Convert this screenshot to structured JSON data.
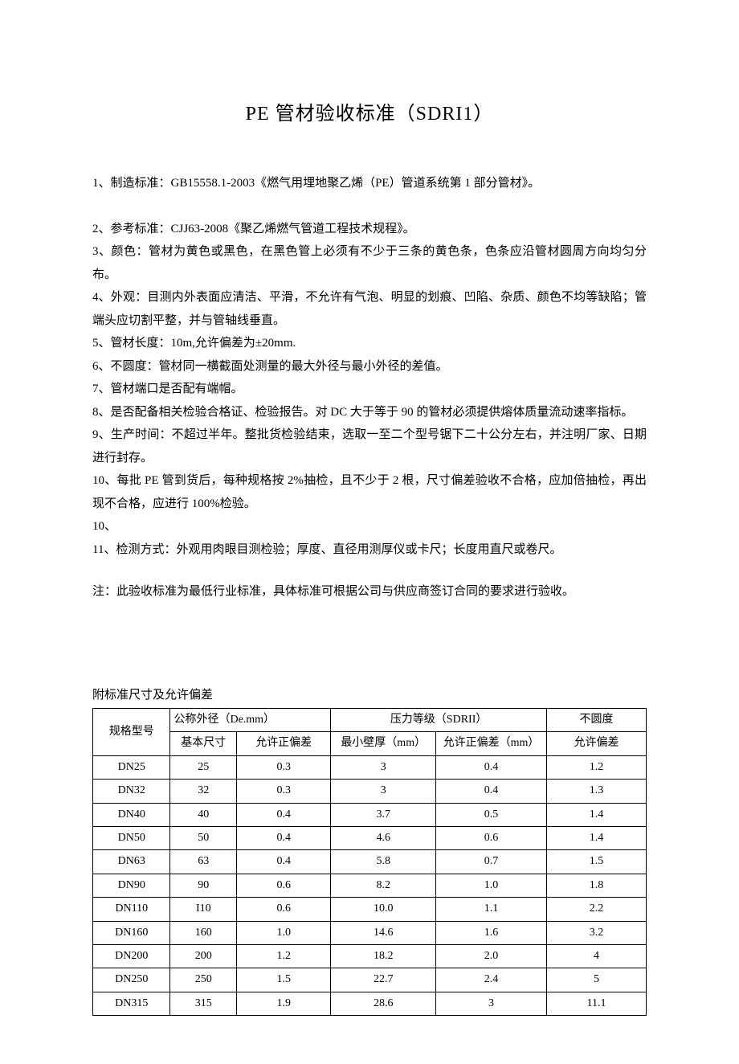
{
  "title": "PE 管材验收标准（SDRI1）",
  "paragraphs": {
    "p1": "1、制造标准：GB15558.1-2003《燃气用埋地聚乙烯（PE）管道系统第 1 部分管材》。",
    "p2": "2、参考标准：CJJ63-2008《聚乙烯燃气管道工程技术规程》。",
    "p3": "3、颜色：管材为黄色或黑色，在黑色管上必须有不少于三条的黄色条，色条应沿管材圆周方向均匀分布。",
    "p4": "4、外观：目测内外表面应清洁、平滑，不允许有气泡、明显的划痕、凹陷、杂质、颜色不均等缺陷；管端头应切割平整，并与管轴线垂直。",
    "p5": "5、管材长度：10m,允许偏差为±20mm.",
    "p6": "6、不圆度：管材同一横截面处测量的最大外径与最小外径的差值。",
    "p7": "7、管材端口是否配有端帽。",
    "p8": "8、是否配备相关检验合格证、检验报告。对 DC 大于等于 90 的管材必须提供熔体质量流动速率指标。",
    "p9": "9、生产时间：不超过半年。整批货检验结束，选取一至二个型号锯下二十公分左右，并注明厂家、日期进行封存。",
    "p10": "10、每批 PE 管到货后，每种规格按 2%抽检，且不少于 2 根，尺寸偏差验收不合格，应加倍抽检，再出现不合格，应进行 100%检验。",
    "p10b": "10、",
    "p11": "11、检测方式：外观用肉眼目测检验；厚度、直径用测厚仪或卡尺；长度用直尺或卷尺。"
  },
  "note": "注：此验收标准为最低行业标准，具体标准可根据公司与供应商签订合同的要求进行验收。",
  "table_caption": "附标准尺寸及允许偏差",
  "table": {
    "header_group1": "公称外径（De.mm）",
    "header_group2": "压力等级（SDRII）",
    "header_group3": "不圆度",
    "header_col1": "规格型号",
    "header_col2": "基本尺寸",
    "header_col3": "允许正偏差",
    "header_col4": "最小壁厚（mm）",
    "header_col5": "允许正偏差（mm）",
    "header_col6": "允许偏差",
    "rows": [
      {
        "c1": "DN25",
        "c2": "25",
        "c3": "0.3",
        "c4": "3",
        "c5": "0.4",
        "c6": "1.2"
      },
      {
        "c1": "DN32",
        "c2": "32",
        "c3": "0.3",
        "c4": "3",
        "c5": "0.4",
        "c6": "1.3"
      },
      {
        "c1": "DN40",
        "c2": "40",
        "c3": "0.4",
        "c4": "3.7",
        "c5": "0.5",
        "c6": "1.4"
      },
      {
        "c1": "DN50",
        "c2": "50",
        "c3": "0.4",
        "c4": "4.6",
        "c5": "0.6",
        "c6": "1.4"
      },
      {
        "c1": "DN63",
        "c2": "63",
        "c3": "0.4",
        "c4": "5.8",
        "c5": "0.7",
        "c6": "1.5"
      },
      {
        "c1": "DN90",
        "c2": "90",
        "c3": "0.6",
        "c4": "8.2",
        "c5": "1.0",
        "c6": "1.8"
      },
      {
        "c1": "DN110",
        "c2": "I10",
        "c3": "0.6",
        "c4": "10.0",
        "c5": "1.1",
        "c6": "2.2"
      },
      {
        "c1": "DN160",
        "c2": "160",
        "c3": "1.0",
        "c4": "14.6",
        "c5": "1.6",
        "c6": "3.2"
      },
      {
        "c1": "DN200",
        "c2": "200",
        "c3": "1.2",
        "c4": "18.2",
        "c5": "2.0",
        "c6": "4"
      },
      {
        "c1": "DN250",
        "c2": "250",
        "c3": "1.5",
        "c4": "22.7",
        "c5": "2.4",
        "c6": "5"
      },
      {
        "c1": "DN315",
        "c2": "315",
        "c3": "1.9",
        "c4": "28.6",
        "c5": "3",
        "c6": "11.1"
      }
    ]
  },
  "styling": {
    "background_color": "#ffffff",
    "text_color": "#000000",
    "border_color": "#000000",
    "body_font_size": 15,
    "title_font_size": 24,
    "table_font_size": 14,
    "line_height": 1.9
  }
}
